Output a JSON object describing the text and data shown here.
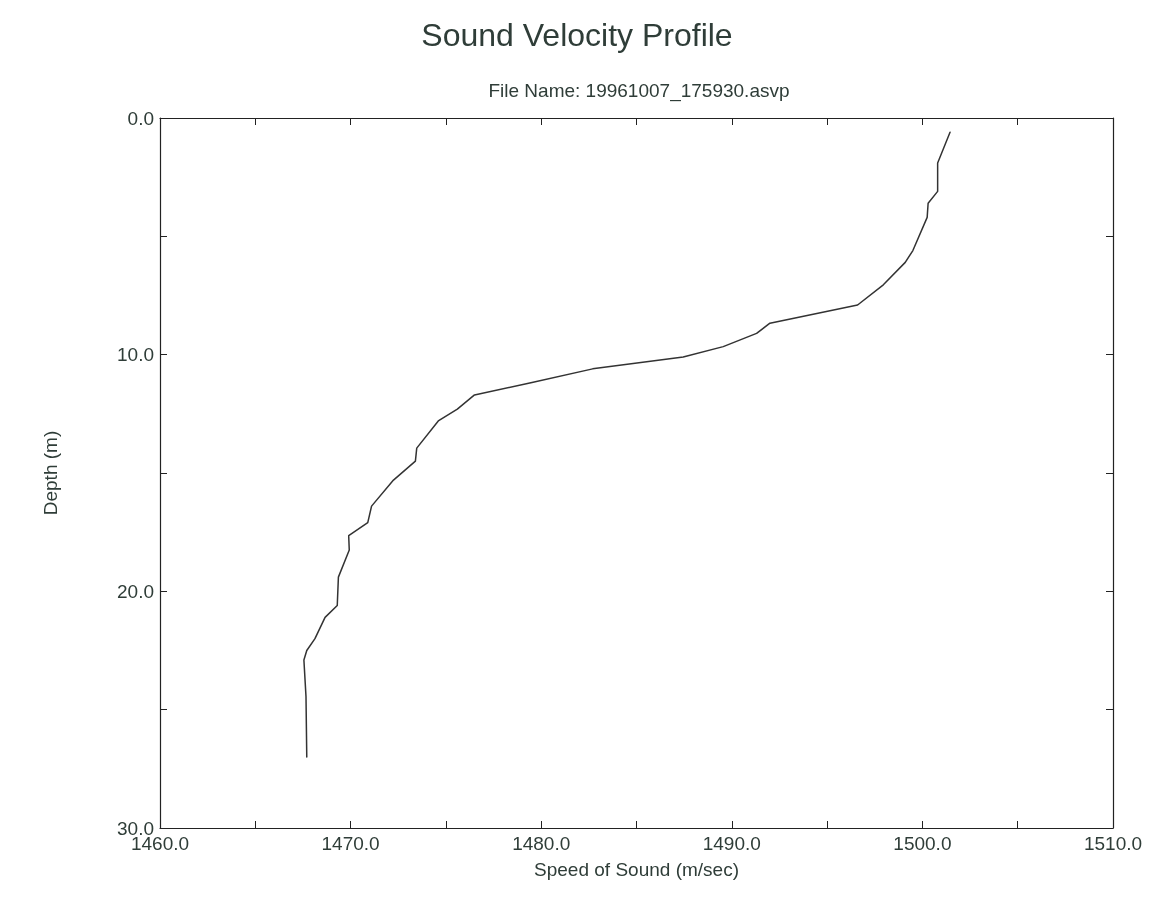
{
  "chart_data": {
    "type": "line",
    "title": "Sound Velocity Profile",
    "subtitle": "File Name: 19961007_175930.asvp",
    "xlabel": "Speed of Sound (m/sec)",
    "ylabel": "Depth (m)",
    "x": [
      1501.45,
      1500.8,
      1500.8,
      1500.3,
      1500.25,
      1499.5,
      1499.1,
      1497.95,
      1496.6,
      1492.0,
      1491.3,
      1489.55,
      1487.45,
      1482.7,
      1479.4,
      1476.5,
      1475.6,
      1474.6,
      1473.47,
      1473.4,
      1472.25,
      1471.1,
      1470.9,
      1469.9,
      1469.93,
      1469.36,
      1469.3,
      1468.66,
      1468.13,
      1467.7,
      1467.55,
      1467.66,
      1467.7
    ],
    "values": [
      0.6,
      1.9,
      3.1,
      3.6,
      4.2,
      5.6,
      6.1,
      7.05,
      7.9,
      8.67,
      9.1,
      9.66,
      10.1,
      10.6,
      11.2,
      11.7,
      12.3,
      12.8,
      13.95,
      14.5,
      15.3,
      16.4,
      17.1,
      17.65,
      18.25,
      19.4,
      20.6,
      21.1,
      22.0,
      22.5,
      22.9,
      24.45,
      27.0
    ],
    "color": "#333333",
    "xlim": [
      1460,
      1510
    ],
    "xticks": [
      {
        "value": 1460,
        "label": "1460.0"
      },
      {
        "value": 1465,
        "label": null
      },
      {
        "value": 1470,
        "label": "1470.0"
      },
      {
        "value": 1475,
        "label": null
      },
      {
        "value": 1480,
        "label": "1480.0"
      },
      {
        "value": 1485,
        "label": null
      },
      {
        "value": 1490,
        "label": "1490.0"
      },
      {
        "value": 1495,
        "label": null
      },
      {
        "value": 1500,
        "label": "1500.0"
      },
      {
        "value": 1505,
        "label": null
      },
      {
        "value": 1510,
        "label": "1510.0"
      }
    ],
    "ylim": [
      30,
      0
    ],
    "yticks": [
      {
        "value": 0,
        "label": "0.0"
      },
      {
        "value": 5,
        "label": null
      },
      {
        "value": 10,
        "label": "10.0"
      },
      {
        "value": 15,
        "label": null
      },
      {
        "value": 20,
        "label": "20.0"
      },
      {
        "value": 25,
        "label": null
      },
      {
        "value": 30,
        "label": "30.0"
      }
    ],
    "marker": "none",
    "line_style": "solid"
  }
}
